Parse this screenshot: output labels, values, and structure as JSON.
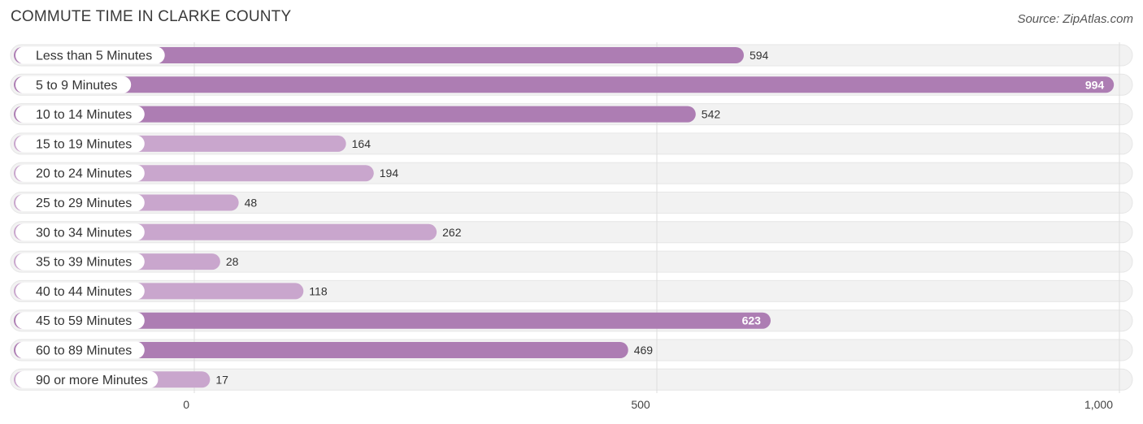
{
  "header": {
    "title": "COMMUTE TIME IN CLARKE COUNTY",
    "source": "Source: ZipAtlas.com"
  },
  "colors": {
    "bar_strong": "#ad7db3",
    "bar_light": "#c9a6cd",
    "track": "#f2f2f2",
    "grid": "#dddddd"
  },
  "chart_data": {
    "type": "bar",
    "orientation": "horizontal",
    "title": "COMMUTE TIME IN CLARKE COUNTY",
    "categories": [
      "Less than 5 Minutes",
      "5 to 9 Minutes",
      "10 to 14 Minutes",
      "15 to 19 Minutes",
      "20 to 24 Minutes",
      "25 to 29 Minutes",
      "30 to 34 Minutes",
      "35 to 39 Minutes",
      "40 to 44 Minutes",
      "45 to 59 Minutes",
      "60 to 89 Minutes",
      "90 or more Minutes"
    ],
    "values": [
      594,
      994,
      542,
      164,
      194,
      48,
      262,
      28,
      118,
      623,
      469,
      17
    ],
    "value_labels": [
      "594",
      "994",
      "542",
      "164",
      "194",
      "48",
      "262",
      "28",
      "118",
      "623",
      "469",
      "17"
    ],
    "xlim": [
      0,
      1000
    ],
    "ticks": [
      0,
      500,
      1000
    ],
    "tick_labels": [
      "0",
      "500",
      "1,000"
    ],
    "grid": true,
    "xlabel": "",
    "ylabel": ""
  }
}
